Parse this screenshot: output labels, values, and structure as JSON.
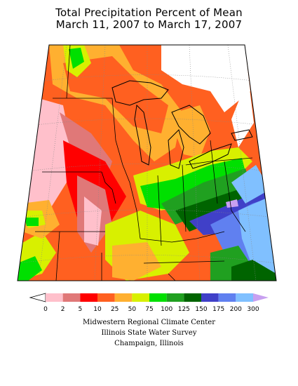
{
  "title": {
    "line1": "Total Precipitation Percent of Mean",
    "line2": "March 11, 2007 to March 17, 2007"
  },
  "legend": {
    "labels": [
      "0",
      "2",
      "5",
      "10",
      "25",
      "50",
      "75",
      "100",
      "125",
      "150",
      "175",
      "200",
      "300"
    ],
    "colors": [
      "#ffffff",
      "#ffc0cb",
      "#e07878",
      "#ff0000",
      "#ff6020",
      "#ffb030",
      "#d8f000",
      "#00e000",
      "#20a020",
      "#006400",
      "#4040c8",
      "#6080f0",
      "#80c0ff",
      "#c8a0f0"
    ]
  },
  "credits": {
    "line1": "Midwestern Regional Climate Center",
    "line2": "Illinois State Water Survey",
    "line3": "Champaign, Illinois"
  },
  "colors": {
    "none": "#ffffff",
    "pink": "#ffc0cb",
    "rose": "#e07878",
    "red": "#ff0000",
    "orange": "#ff6020",
    "light_orange": "#ffb030",
    "yellow_green": "#d8f000",
    "green": "#00e000",
    "mid_green": "#20a020",
    "dark_green": "#006400",
    "indigo": "#4040c8",
    "blue": "#6080f0",
    "light_blue": "#80c0ff",
    "lavender": "#c8a0f0"
  }
}
